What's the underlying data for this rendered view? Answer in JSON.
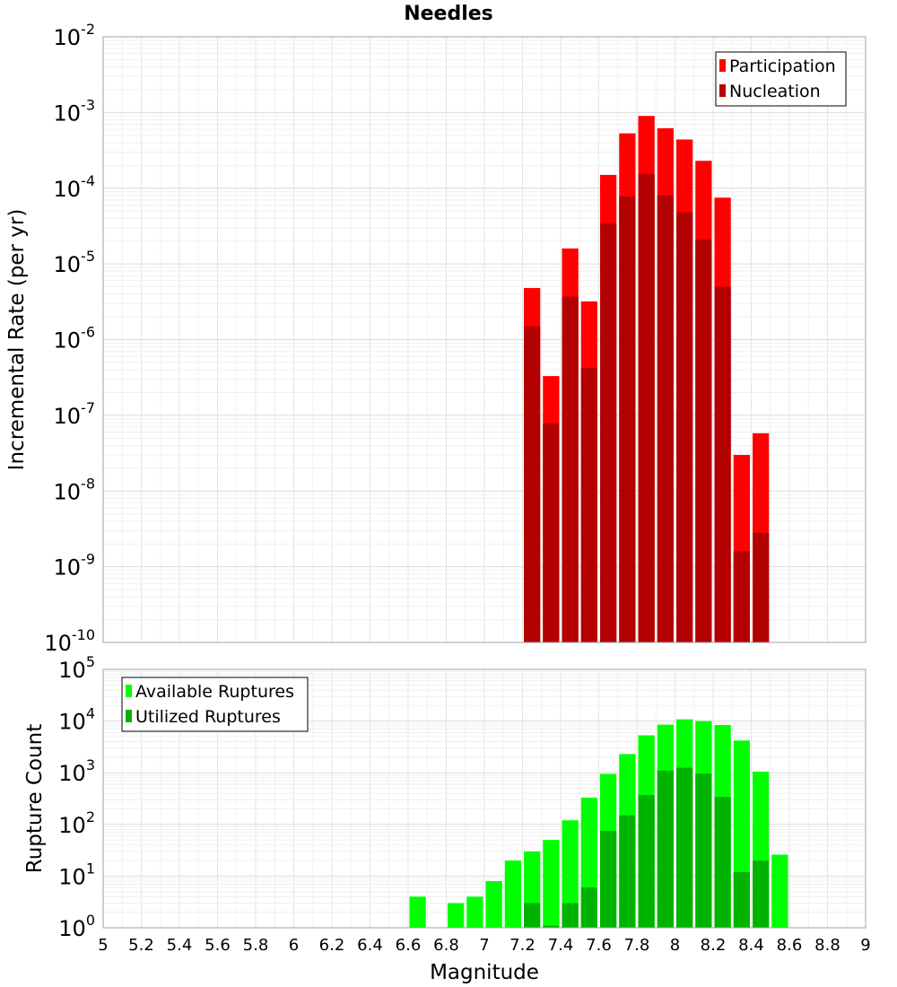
{
  "chart_data": [
    {
      "type": "bar",
      "title": "Needles",
      "xlabel": "",
      "ylabel": "Incremental Rate (per yr)",
      "yscale": "log",
      "xlim": [
        5,
        9
      ],
      "ylim": [
        1e-10,
        0.01
      ],
      "ytick_exponents": [
        "-10",
        "-9",
        "-8",
        "-7",
        "-6",
        "-5",
        "-4",
        "-3",
        "-2"
      ],
      "ytick_base": "10",
      "legend_position": "top-right",
      "categories": [
        7.25,
        7.35,
        7.45,
        7.55,
        7.65,
        7.75,
        7.85,
        7.95,
        8.05,
        8.15,
        8.25,
        8.35,
        8.45
      ],
      "series": [
        {
          "name": "Participation",
          "color": "#ff0000",
          "values": [
            4.8e-06,
            3.3e-07,
            1.6e-05,
            3.2e-06,
            0.00015,
            0.00053,
            0.0009,
            0.00062,
            0.00044,
            0.00023,
            7.5e-05,
            3e-08,
            5.8e-08
          ]
        },
        {
          "name": "Nucleation",
          "color": "#b30000",
          "values": [
            1.5e-06,
            7.8e-08,
            3.7e-06,
            4.2e-07,
            3.4e-05,
            7.8e-05,
            0.000155,
            8e-05,
            4.8e-05,
            2.1e-05,
            5e-06,
            1.6e-09,
            2.8e-09
          ]
        }
      ]
    },
    {
      "type": "bar",
      "title": "",
      "xlabel": "Magnitude",
      "ylabel": "Rupture Count",
      "yscale": "log",
      "xlim": [
        5,
        9
      ],
      "ylim": [
        1,
        100000
      ],
      "ytick_exponents": [
        "0",
        "1",
        "2",
        "3",
        "4",
        "5"
      ],
      "ytick_base": "10",
      "xticks": [
        "5",
        "5.2",
        "5.4",
        "5.6",
        "5.8",
        "6",
        "6.2",
        "6.4",
        "6.6",
        "6.8",
        "7",
        "7.2",
        "7.4",
        "7.6",
        "7.8",
        "8",
        "8.2",
        "8.4",
        "8.6",
        "8.8",
        "9"
      ],
      "legend_position": "top-left",
      "categories": [
        6.65,
        6.75,
        6.85,
        6.95,
        7.05,
        7.15,
        7.25,
        7.35,
        7.45,
        7.55,
        7.65,
        7.75,
        7.85,
        7.95,
        8.05,
        8.15,
        8.25,
        8.35,
        8.45,
        8.55
      ],
      "series": [
        {
          "name": "Available Ruptures",
          "color": "#00ff00",
          "values": [
            4,
            0,
            3,
            4,
            8,
            20,
            30,
            50,
            120,
            330,
            950,
            2300,
            5300,
            8500,
            10800,
            10000,
            8400,
            4200,
            1050,
            26
          ]
        },
        {
          "name": "Utilized Ruptures",
          "color": "#00b300",
          "values": [
            0,
            0,
            0,
            0,
            0,
            0,
            3,
            1.1,
            3,
            6,
            75,
            150,
            370,
            1100,
            1250,
            960,
            340,
            12,
            20,
            0
          ]
        }
      ]
    }
  ]
}
